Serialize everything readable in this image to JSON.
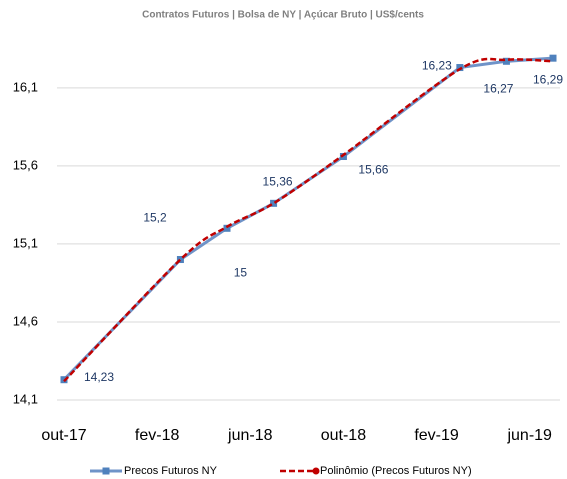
{
  "chart_data": {
    "type": "line",
    "subtitle": "Contratos Futuros | Bolsa de NY | Açúcar Bruto | US$/cents",
    "x": [
      "2017-10",
      "2018-03",
      "2018-05",
      "2018-07",
      "2018-10",
      "2019-03",
      "2019-05",
      "2019-07"
    ],
    "xlim": [
      "2017-10",
      "2019-07"
    ],
    "xticks": [
      {
        "value": "2017-10",
        "label": "out-17"
      },
      {
        "value": "2018-02",
        "label": "fev-18"
      },
      {
        "value": "2018-06",
        "label": "jun-18"
      },
      {
        "value": "2018-10",
        "label": "out-18"
      },
      {
        "value": "2019-02",
        "label": "fev-19"
      },
      {
        "value": "2019-06",
        "label": "jun-19"
      }
    ],
    "ylim": [
      14.1,
      16.4
    ],
    "yticks": [
      {
        "value": 14.1,
        "label": "14,1"
      },
      {
        "value": 14.6,
        "label": "14,6"
      },
      {
        "value": 15.1,
        "label": "15,1"
      },
      {
        "value": 15.6,
        "label": "15,6"
      },
      {
        "value": 16.1,
        "label": "16,1"
      }
    ],
    "grid": true,
    "series": [
      {
        "name": "Precos Futuros NY",
        "color": "#6f93c8",
        "marker_color": "#4f81bd",
        "values": [
          14.23,
          15,
          15.2,
          15.36,
          15.66,
          16.23,
          16.27,
          16.29
        ],
        "value_labels": [
          "14,23",
          "15",
          "15,2",
          "15,36",
          "15,66",
          "16,23",
          "16,27",
          "16,29"
        ]
      },
      {
        "name": "Polinômio (Precos Futuros NY)",
        "color": "#c00000",
        "values": [
          14.22,
          15.0,
          15.21,
          15.36,
          15.67,
          16.22,
          16.28,
          16.27
        ]
      }
    ]
  }
}
